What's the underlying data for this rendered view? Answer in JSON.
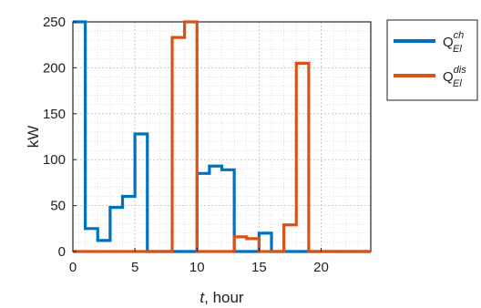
{
  "chart_data": {
    "type": "line",
    "step": true,
    "xlabel": {
      "italic": "t",
      "rest": ", hour"
    },
    "ylabel": "kW",
    "xlim": [
      0,
      24
    ],
    "ylim": [
      0,
      250
    ],
    "xticks": [
      0,
      5,
      10,
      15,
      20
    ],
    "yticks": [
      0,
      50,
      100,
      150,
      200,
      250
    ],
    "grid": true,
    "grid_minor": true,
    "legend_placement": "outside-top-right",
    "series": [
      {
        "name": "Q_El^ch",
        "legend": {
          "base": "Q",
          "sup": "ch",
          "sub": "El"
        },
        "color": "#0072BD",
        "x": [
          0,
          1,
          2,
          3,
          4,
          5,
          6,
          7,
          8,
          9,
          10,
          11,
          12,
          13,
          14,
          15,
          16,
          17,
          18,
          19,
          20,
          21,
          22,
          23
        ],
        "values": [
          250,
          25,
          12,
          48,
          60,
          128,
          0,
          0,
          0,
          0,
          85,
          93,
          89,
          0,
          0,
          20,
          0,
          0,
          0,
          0,
          0,
          0,
          0,
          0
        ]
      },
      {
        "name": "Q_El^dis",
        "legend": {
          "base": "Q",
          "sup": "dis",
          "sub": "El"
        },
        "color": "#D95319",
        "x": [
          0,
          1,
          2,
          3,
          4,
          5,
          6,
          7,
          8,
          9,
          10,
          11,
          12,
          13,
          14,
          15,
          16,
          17,
          18,
          19,
          20,
          21,
          22,
          23
        ],
        "values": [
          0,
          0,
          0,
          0,
          0,
          0,
          0,
          0,
          233,
          250,
          0,
          0,
          0,
          16,
          14,
          0,
          0,
          29,
          205,
          0,
          0,
          0,
          0,
          0
        ]
      }
    ]
  }
}
